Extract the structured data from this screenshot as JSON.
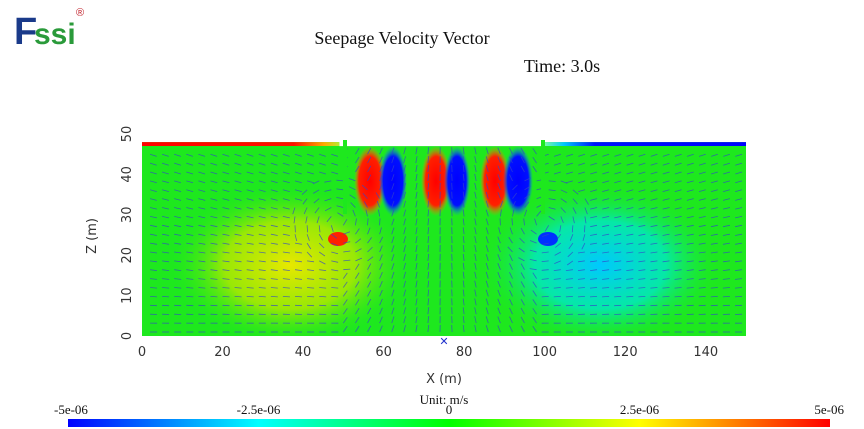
{
  "logo": {
    "text_f": "F",
    "text_ssi": "ssi",
    "registered": "®"
  },
  "header": {
    "title": "Seepage Velocity Vector",
    "time_label": "Time: 3.0s"
  },
  "chart_data": {
    "type": "heatmap",
    "title": "Seepage Velocity Vector",
    "subtitle": "Time: 3.0s",
    "xlabel": "X (m)",
    "ylabel": "Z (m)",
    "xlim": [
      0,
      150
    ],
    "ylim": [
      0,
      50
    ],
    "x_ticks": [
      "0",
      "20",
      "40",
      "60",
      "80",
      "100",
      "120",
      "140"
    ],
    "y_ticks": [
      "0",
      "10",
      "20",
      "30",
      "40",
      "50"
    ],
    "field": "horizontal seepage velocity (m/s)",
    "colorbar": {
      "unit_label": "Unit: m/s",
      "min": -5e-06,
      "max": 5e-06,
      "ticks": [
        "-5e-06",
        "-2.5e-06",
        "0",
        "2.5e-06",
        "5e-06"
      ],
      "colormap": [
        "#0000ff",
        "#00ffff",
        "#00ff00",
        "#ffff00",
        "#ff0000"
      ]
    },
    "domain_outline": [
      [
        0,
        48
      ],
      [
        49,
        48
      ],
      [
        49,
        47
      ],
      [
        50,
        47
      ],
      [
        50,
        47
      ],
      [
        100,
        47
      ],
      [
        100,
        48
      ],
      [
        150,
        48
      ],
      [
        150,
        0
      ],
      [
        0,
        0
      ]
    ]
  },
  "colors": {
    "field_base": "#1ee81e",
    "vector": "#3344cc"
  }
}
